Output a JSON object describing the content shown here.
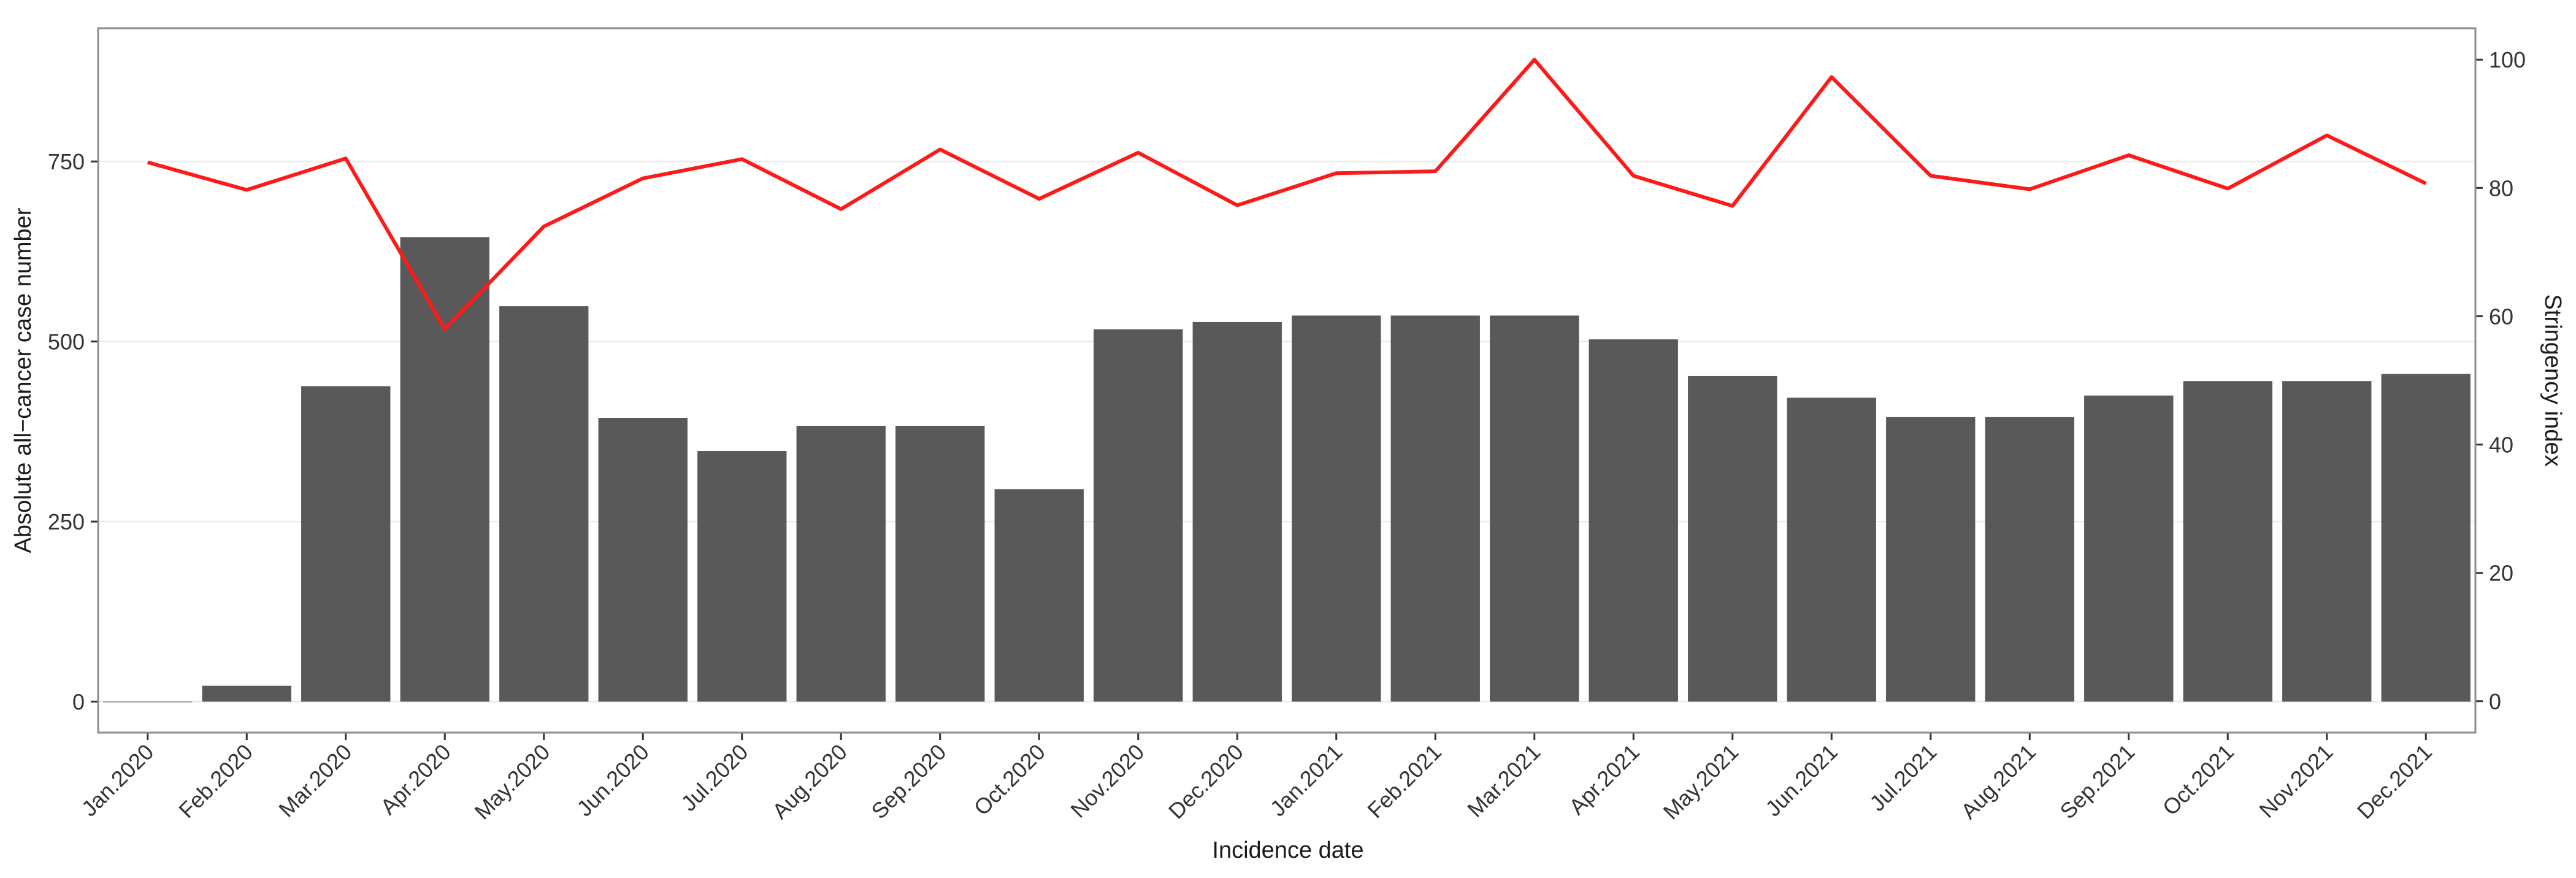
{
  "chart_data": {
    "type": "bar",
    "x_label": "Incidence date",
    "y_label": "Absolute all−cancer case number",
    "y2_label": "Stringency index",
    "categories": [
      "Jan.2020",
      "Feb.2020",
      "Mar.2020",
      "Apr.2020",
      "May.2020",
      "Jun.2020",
      "Jul.2020",
      "Aug.2020",
      "Sep.2020",
      "Oct.2020",
      "Nov.2020",
      "Dec.2020",
      "Jan.2021",
      "Feb.2021",
      "Mar.2021",
      "Apr.2021",
      "May.2021",
      "Jun.2021",
      "Jul.2021",
      "Aug.2021",
      "Sep.2021",
      "Oct.2021",
      "Nov.2021",
      "Dec.2021"
    ],
    "series": [
      {
        "type": "bar",
        "color": "#595959",
        "values": [
          0,
          22,
          438,
          645,
          549,
          394,
          348,
          383,
          383,
          295,
          517,
          527,
          536,
          536,
          536,
          503,
          452,
          422,
          395,
          395,
          425,
          445,
          445,
          455
        ]
      },
      {
        "type": "line",
        "axis": "y2",
        "color": "#ff1a1a",
        "values": [
          84,
          79.7,
          84.6,
          58,
          74,
          81.5,
          84.5,
          76.7,
          86,
          78.3,
          85.5,
          77.3,
          82.3,
          82.6,
          100,
          81.9,
          77.2,
          97.3,
          81.9,
          79.8,
          85.1,
          79.9,
          88.2,
          80.7
        ]
      }
    ],
    "ylim": [
      -43,
      935
    ],
    "yticks": [
      0,
      250,
      500,
      750
    ],
    "y2lim": [
      -4.9,
      104.9
    ],
    "y2ticks": [
      0,
      20,
      40,
      60,
      80,
      100
    ],
    "grid": true
  }
}
